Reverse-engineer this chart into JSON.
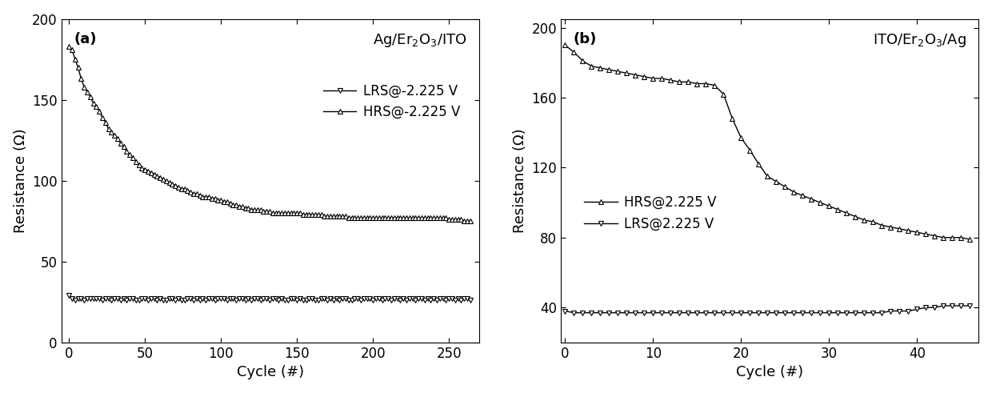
{
  "panel_a": {
    "title": "Ag/Er$_2$O$_3$/ITO",
    "label": "(a)",
    "xlabel": "Cycle (#)",
    "ylabel": "Resistance (Ω)",
    "xlim": [
      -5,
      270
    ],
    "ylim": [
      0,
      200
    ],
    "xticks": [
      0,
      50,
      100,
      150,
      200,
      250
    ],
    "yticks": [
      0,
      50,
      100,
      150,
      200
    ],
    "legend_lrs": "LRS@-2.225 V",
    "legend_hrs": "HRS@-2.225 V",
    "hrs_x": [
      0,
      2,
      4,
      6,
      8,
      10,
      12,
      14,
      16,
      18,
      20,
      22,
      24,
      26,
      28,
      30,
      32,
      34,
      36,
      38,
      40,
      42,
      44,
      46,
      48,
      50,
      52,
      54,
      56,
      58,
      60,
      62,
      64,
      66,
      68,
      70,
      72,
      74,
      76,
      78,
      80,
      82,
      84,
      86,
      88,
      90,
      92,
      94,
      96,
      98,
      100,
      102,
      104,
      106,
      108,
      110,
      112,
      114,
      116,
      118,
      120,
      122,
      124,
      126,
      128,
      130,
      132,
      134,
      136,
      138,
      140,
      142,
      144,
      146,
      148,
      150,
      152,
      154,
      156,
      158,
      160,
      162,
      164,
      166,
      168,
      170,
      172,
      174,
      176,
      178,
      180,
      182,
      184,
      186,
      188,
      190,
      192,
      194,
      196,
      198,
      200,
      202,
      204,
      206,
      208,
      210,
      212,
      214,
      216,
      218,
      220,
      222,
      224,
      226,
      228,
      230,
      232,
      234,
      236,
      238,
      240,
      242,
      244,
      246,
      248,
      250,
      252,
      254,
      256,
      258,
      260,
      262,
      264
    ],
    "hrs_y": [
      183,
      181,
      175,
      170,
      163,
      158,
      155,
      152,
      148,
      146,
      143,
      139,
      136,
      132,
      130,
      128,
      126,
      123,
      121,
      118,
      116,
      114,
      112,
      110,
      108,
      107,
      106,
      105,
      104,
      103,
      102,
      101,
      100,
      99,
      98,
      97,
      96,
      95,
      95,
      94,
      93,
      92,
      92,
      91,
      90,
      90,
      90,
      89,
      89,
      88,
      88,
      87,
      87,
      86,
      85,
      85,
      84,
      84,
      83,
      83,
      82,
      82,
      82,
      82,
      81,
      81,
      81,
      80,
      80,
      80,
      80,
      80,
      80,
      80,
      80,
      80,
      80,
      79,
      79,
      79,
      79,
      79,
      79,
      79,
      78,
      78,
      78,
      78,
      78,
      78,
      78,
      78,
      77,
      77,
      77,
      77,
      77,
      77,
      77,
      77,
      77,
      77,
      77,
      77,
      77,
      77,
      77,
      77,
      77,
      77,
      77,
      77,
      77,
      77,
      77,
      77,
      77,
      77,
      77,
      77,
      77,
      77,
      77,
      77,
      77,
      76,
      76,
      76,
      76,
      76,
      75,
      75,
      75
    ],
    "lrs_x": [
      0,
      2,
      4,
      6,
      8,
      10,
      12,
      14,
      16,
      18,
      20,
      22,
      24,
      26,
      28,
      30,
      32,
      34,
      36,
      38,
      40,
      42,
      44,
      46,
      48,
      50,
      52,
      54,
      56,
      58,
      60,
      62,
      64,
      66,
      68,
      70,
      72,
      74,
      76,
      78,
      80,
      82,
      84,
      86,
      88,
      90,
      92,
      94,
      96,
      98,
      100,
      102,
      104,
      106,
      108,
      110,
      112,
      114,
      116,
      118,
      120,
      122,
      124,
      126,
      128,
      130,
      132,
      134,
      136,
      138,
      140,
      142,
      144,
      146,
      148,
      150,
      152,
      154,
      156,
      158,
      160,
      162,
      164,
      166,
      168,
      170,
      172,
      174,
      176,
      178,
      180,
      182,
      184,
      186,
      188,
      190,
      192,
      194,
      196,
      198,
      200,
      202,
      204,
      206,
      208,
      210,
      212,
      214,
      216,
      218,
      220,
      222,
      224,
      226,
      228,
      230,
      232,
      234,
      236,
      238,
      240,
      242,
      244,
      246,
      248,
      250,
      252,
      254,
      256,
      258,
      260,
      262,
      264
    ],
    "lrs_y": [
      29,
      27,
      26,
      27,
      27,
      26,
      27,
      27,
      27,
      27,
      27,
      26,
      27,
      27,
      26,
      27,
      27,
      26,
      27,
      26,
      27,
      27,
      26,
      26,
      27,
      27,
      26,
      27,
      27,
      26,
      27,
      26,
      26,
      27,
      27,
      26,
      27,
      26,
      26,
      27,
      27,
      26,
      27,
      26,
      27,
      26,
      27,
      27,
      26,
      27,
      27,
      27,
      26,
      27,
      27,
      26,
      27,
      27,
      26,
      27,
      26,
      27,
      27,
      26,
      27,
      27,
      26,
      27,
      27,
      26,
      27,
      26,
      26,
      27,
      27,
      26,
      27,
      26,
      26,
      27,
      27,
      26,
      26,
      27,
      27,
      26,
      27,
      26,
      27,
      26,
      27,
      27,
      26,
      26,
      27,
      27,
      26,
      27,
      27,
      27,
      26,
      27,
      27,
      26,
      27,
      27,
      26,
      27,
      27,
      26,
      27,
      26,
      27,
      27,
      26,
      27,
      27,
      26,
      27,
      26,
      27,
      26,
      27,
      27,
      26,
      27,
      27,
      26,
      27,
      26,
      27,
      27,
      26
    ]
  },
  "panel_b": {
    "title": "ITO/Er$_2$O$_3$/Ag",
    "label": "(b)",
    "xlabel": "Cycle (#)",
    "ylabel": "Resistance (Ω)",
    "xlim": [
      -0.5,
      47
    ],
    "ylim": [
      20,
      205
    ],
    "xticks": [
      0,
      10,
      20,
      30,
      40
    ],
    "yticks": [
      40,
      80,
      120,
      160,
      200
    ],
    "legend_hrs": "HRS@2.225 V",
    "legend_lrs": "LRS@2.225 V",
    "hrs_x": [
      0,
      1,
      2,
      3,
      4,
      5,
      6,
      7,
      8,
      9,
      10,
      11,
      12,
      13,
      14,
      15,
      16,
      17,
      18,
      19,
      20,
      21,
      22,
      23,
      24,
      25,
      26,
      27,
      28,
      29,
      30,
      31,
      32,
      33,
      34,
      35,
      36,
      37,
      38,
      39,
      40,
      41,
      42,
      43,
      44,
      45,
      46
    ],
    "hrs_y": [
      190,
      186,
      181,
      178,
      177,
      176,
      175,
      174,
      173,
      172,
      171,
      171,
      170,
      169,
      169,
      168,
      168,
      167,
      162,
      148,
      137,
      130,
      122,
      115,
      112,
      109,
      106,
      104,
      102,
      100,
      98,
      96,
      94,
      92,
      90,
      89,
      87,
      86,
      85,
      84,
      83,
      82,
      81,
      80,
      80,
      80,
      79
    ],
    "lrs_x": [
      0,
      1,
      2,
      3,
      4,
      5,
      6,
      7,
      8,
      9,
      10,
      11,
      12,
      13,
      14,
      15,
      16,
      17,
      18,
      19,
      20,
      21,
      22,
      23,
      24,
      25,
      26,
      27,
      28,
      29,
      30,
      31,
      32,
      33,
      34,
      35,
      36,
      37,
      38,
      39,
      40,
      41,
      42,
      43,
      44,
      45,
      46
    ],
    "lrs_y": [
      38,
      37,
      37,
      37,
      37,
      37,
      37,
      37,
      37,
      37,
      37,
      37,
      37,
      37,
      37,
      37,
      37,
      37,
      37,
      37,
      37,
      37,
      37,
      37,
      37,
      37,
      37,
      37,
      37,
      37,
      37,
      37,
      37,
      37,
      37,
      37,
      37,
      38,
      38,
      38,
      39,
      40,
      40,
      41,
      41,
      41,
      41
    ]
  },
  "marker_size": 5,
  "line_width": 1.0,
  "font_size": 13,
  "label_font_size": 13,
  "tick_font_size": 12
}
